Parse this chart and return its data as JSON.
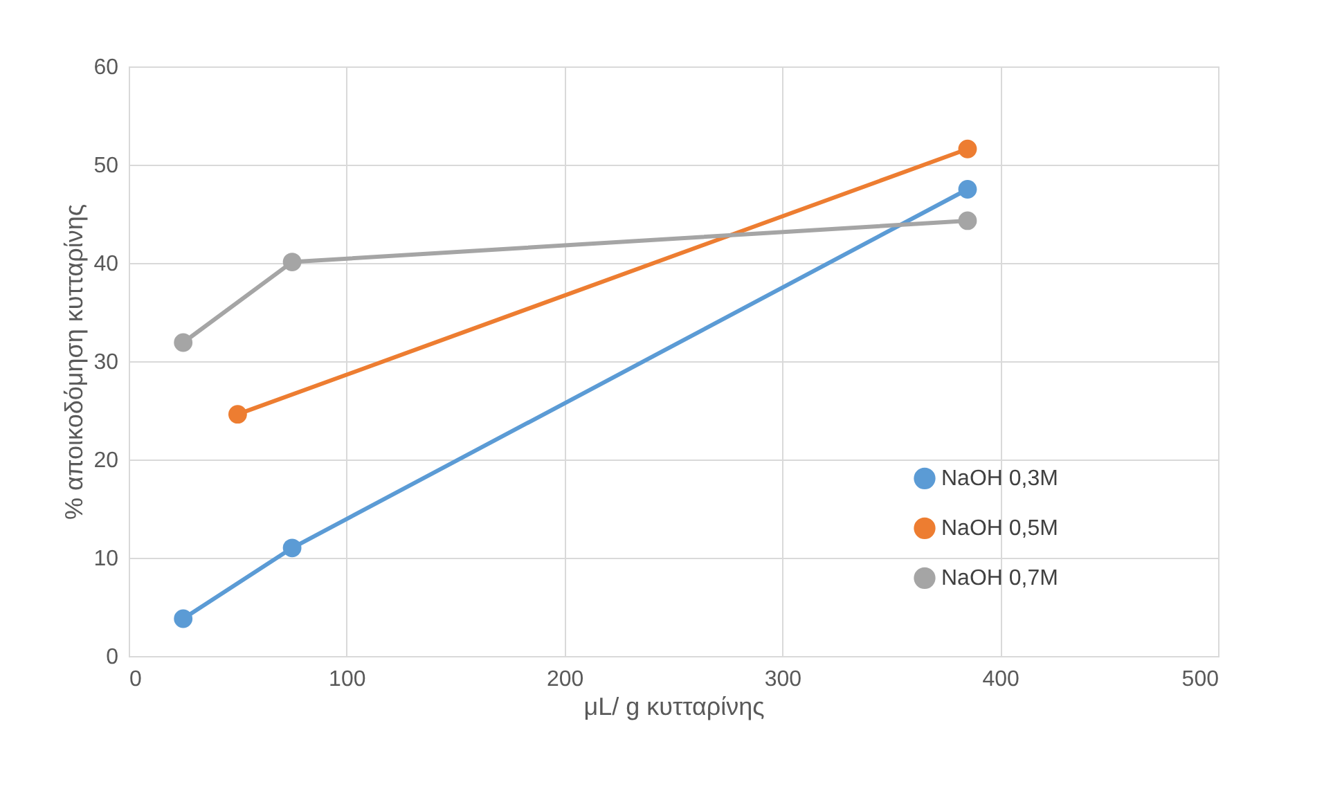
{
  "chart_data": {
    "type": "line",
    "xlabel": "μL/ g κυτταρίνης",
    "ylabel": "% αποικοδόμηση κυτταρίνης",
    "xlim": [
      0,
      500
    ],
    "xticks": [
      0,
      100,
      200,
      300,
      400,
      500
    ],
    "ylim": [
      0,
      60
    ],
    "yticks": [
      0,
      10,
      20,
      30,
      40,
      50,
      60
    ],
    "grid": true,
    "legend": "right",
    "marker": "circle",
    "line_style": "solid",
    "series": [
      {
        "name": "NaOH 0,3M",
        "color": "#5b9bd5",
        "x": [
          25,
          75,
          385
        ],
        "values": [
          3.8,
          11.0,
          47.5
        ]
      },
      {
        "name": "NaOH 0,5M",
        "color": "#ed7d31",
        "x": [
          50,
          385
        ],
        "values": [
          24.6,
          51.6
        ]
      },
      {
        "name": "NaOH 0,7M",
        "color": "#a5a5a5",
        "x": [
          25,
          75,
          385
        ],
        "values": [
          31.9,
          40.1,
          44.3
        ]
      }
    ]
  }
}
